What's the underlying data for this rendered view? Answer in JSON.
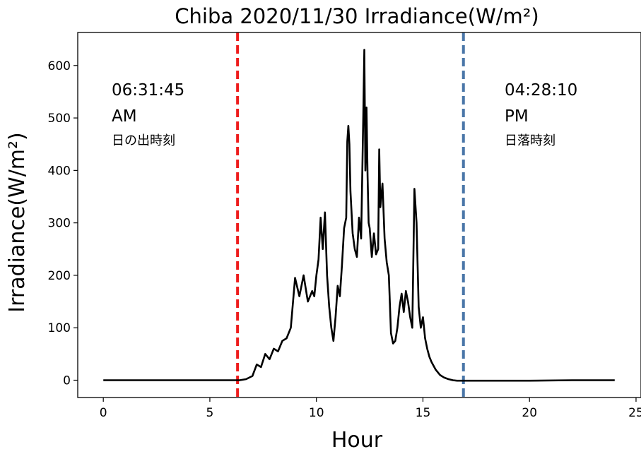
{
  "chart_data": {
    "type": "line",
    "title": "Chiba 2020/11/30 Irradiance(W/m²)",
    "xlabel": "Hour",
    "ylabel": "Irradiance(W/m²)",
    "xlim": [
      -1.2,
      25.2
    ],
    "ylim": [
      -33,
      663
    ],
    "xticks": [
      0,
      5,
      10,
      15,
      20,
      25
    ],
    "yticks": [
      0,
      100,
      200,
      300,
      400,
      500,
      600
    ],
    "grid": false,
    "series": [
      {
        "color": "#000000",
        "x": [
          0,
          6.0,
          6.4,
          6.7,
          7.0,
          7.2,
          7.4,
          7.6,
          7.8,
          8.0,
          8.2,
          8.4,
          8.6,
          8.8,
          9.0,
          9.2,
          9.4,
          9.6,
          9.8,
          9.9,
          10.0,
          10.1,
          10.2,
          10.3,
          10.4,
          10.5,
          10.6,
          10.7,
          10.8,
          10.9,
          11.0,
          11.1,
          11.2,
          11.3,
          11.4,
          11.45,
          11.5,
          11.55,
          11.6,
          11.7,
          11.8,
          11.9,
          12.0,
          12.1,
          12.2,
          12.25,
          12.3,
          12.35,
          12.4,
          12.45,
          12.5,
          12.6,
          12.7,
          12.8,
          12.9,
          12.95,
          13.0,
          13.1,
          13.2,
          13.3,
          13.4,
          13.5,
          13.6,
          13.7,
          13.8,
          13.9,
          14.0,
          14.1,
          14.2,
          14.3,
          14.4,
          14.5,
          14.6,
          14.7,
          14.8,
          14.9,
          15.0,
          15.1,
          15.2,
          15.3,
          15.4,
          15.6,
          15.8,
          16.0,
          16.2,
          16.4,
          16.6,
          16.9,
          17.2,
          18,
          20,
          22,
          24
        ],
        "values": [
          0,
          0,
          0,
          2,
          8,
          30,
          25,
          50,
          40,
          60,
          55,
          75,
          80,
          100,
          195,
          160,
          200,
          150,
          170,
          160,
          200,
          230,
          310,
          250,
          320,
          200,
          140,
          100,
          75,
          120,
          180,
          160,
          220,
          290,
          310,
          455,
          485,
          450,
          360,
          280,
          250,
          235,
          310,
          270,
          500,
          630,
          400,
          520,
          390,
          300,
          290,
          235,
          280,
          240,
          250,
          440,
          330,
          375,
          270,
          225,
          200,
          90,
          70,
          75,
          100,
          140,
          165,
          130,
          170,
          150,
          120,
          100,
          365,
          300,
          140,
          100,
          120,
          80,
          60,
          45,
          35,
          20,
          10,
          5,
          2,
          0,
          -1,
          -1,
          -1,
          -1,
          -1,
          0,
          0
        ]
      }
    ],
    "annotations": {
      "sunrise": {
        "x": 6.3,
        "color": "#ee1c1c",
        "time": "06:31:45",
        "ampm": "AM",
        "label": "日の出時刻"
      },
      "sunset": {
        "x": 16.9,
        "color": "#4a76a8",
        "time": "04:28:10",
        "ampm": "PM",
        "label": "日落時刻"
      }
    }
  }
}
